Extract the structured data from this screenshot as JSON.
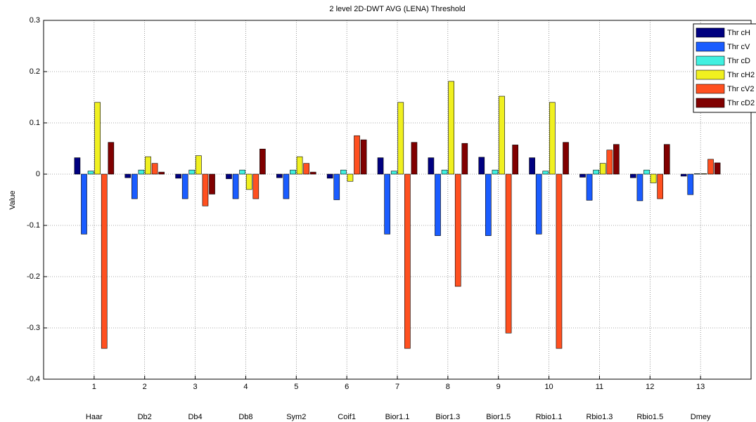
{
  "chart_data": {
    "type": "bar",
    "title": "2 level 2D-DWT AVG (LENA) Threshold",
    "y_label": "Value",
    "x": [
      1,
      2,
      3,
      4,
      5,
      6,
      7,
      8,
      9,
      10,
      11,
      12,
      13
    ],
    "categories": [
      "Haar",
      "Db2",
      "Db4",
      "Db8",
      "Sym2",
      "Coif1",
      "Bior1.1",
      "Bior1.3",
      "Bior1.5",
      "Rbio1.1",
      "Rbio1.3",
      "Rbio1.5",
      "Dmey"
    ],
    "xlim": [
      0,
      14
    ],
    "xticks": [
      1,
      2,
      3,
      4,
      5,
      6,
      7,
      8,
      9,
      10,
      11,
      12,
      13
    ],
    "ylim": [
      -0.4,
      0.3
    ],
    "yticks": [
      -0.4,
      -0.3,
      -0.2,
      -0.1,
      0,
      0.1,
      0.2,
      0.3
    ],
    "grid": true,
    "legend_position": "top-right",
    "series": [
      {
        "name": "Thr cH",
        "color": "#000080",
        "values": [
          0.032,
          -0.007,
          -0.008,
          -0.009,
          -0.007,
          -0.008,
          0.032,
          0.032,
          0.033,
          0.032,
          -0.006,
          -0.007,
          -0.004
        ]
      },
      {
        "name": "Thr cV",
        "color": "#1a5cff",
        "values": [
          -0.117,
          -0.048,
          -0.048,
          -0.048,
          -0.048,
          -0.05,
          -0.117,
          -0.12,
          -0.12,
          -0.117,
          -0.051,
          -0.052,
          -0.04
        ]
      },
      {
        "name": "Thr cD",
        "color": "#40f0e0",
        "values": [
          0.006,
          0.008,
          0.008,
          0.008,
          0.008,
          0.008,
          0.006,
          0.008,
          0.008,
          0.006,
          0.008,
          0.008,
          0.001
        ]
      },
      {
        "name": "Thr cH2",
        "color": "#f0f020",
        "values": [
          0.14,
          0.034,
          0.036,
          -0.03,
          0.034,
          -0.014,
          0.14,
          0.181,
          0.152,
          0.14,
          0.021,
          -0.017,
          0.001
        ]
      },
      {
        "name": "Thr cV2",
        "color": "#ff5020",
        "values": [
          -0.34,
          0.021,
          -0.062,
          -0.048,
          0.021,
          0.075,
          -0.34,
          -0.219,
          -0.31,
          -0.34,
          0.047,
          -0.048,
          0.029
        ]
      },
      {
        "name": "Thr cD2",
        "color": "#800000",
        "values": [
          0.062,
          0.004,
          -0.039,
          0.049,
          0.004,
          0.067,
          0.062,
          0.06,
          0.057,
          0.062,
          0.058,
          0.058,
          0.022
        ]
      }
    ]
  }
}
